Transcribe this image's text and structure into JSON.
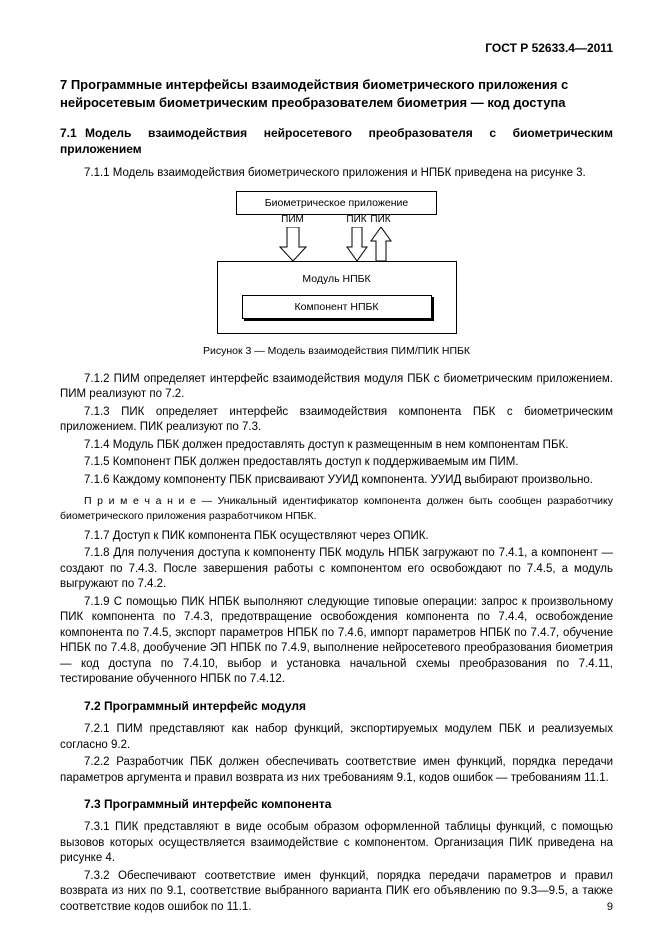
{
  "doc_id": "ГОСТ Р 52633.4—2011",
  "section7_title": "7  Программные интерфейсы взаимодействия биометрического приложения с нейросетевым биометрическим преобразователем биометрия — код доступа",
  "s71_title": "7.1 Модель взаимодействия нейросетевого преобразователя с биометрическим приложением",
  "p711": "7.1.1  Модель взаимодействия биометрического приложения и НПБК приведена на рисунке 3.",
  "fig": {
    "top_box": "Биометрическое приложение",
    "label_pim": "ПИМ",
    "label_pik": "ПИК",
    "big_box_title": "Модуль НПБК",
    "inner_box": "Компонент НПБК",
    "caption": "Рисунок 3 — Модель взаимодействия ПИМ/ПИК НПБК"
  },
  "p712": "7.1.2  ПИМ определяет интерфейс взаимодействия модуля ПБК с биометрическим приложением. ПИМ реализуют по 7.2.",
  "p713": "7.1.3  ПИК определяет интерфейс взаимодействия компонента ПБК с биометрическим приложением. ПИК реализуют по 7.3.",
  "p714": "7.1.4  Модуль ПБК должен предоставлять доступ к размещенным в нем компонентам ПБК.",
  "p715": "7.1.5  Компонент ПБК должен предоставлять доступ к поддерживаемым им ПИМ.",
  "p716": "7.1.6  Каждому компоненту ПБК присваивают УУИД компонента. УУИД выбирают произвольно.",
  "note1": "П р и м е ч а н и е  — Уникальный идентификатор компонента должен быть сообщен разработчику биометрического приложения разработчиком НПБК.",
  "p717": "7.1.7  Доступ к ПИК компонента ПБК осуществляют через ОПИК.",
  "p718": "7.1.8  Для получения доступа к компоненту ПБК модуль НПБК загружают по 7.4.1, а компонент — создают по 7.4.3. После завершения работы с компонентом его освобождают по 7.4.5, а модуль выгружают по 7.4.2.",
  "p719": "7.1.9  С помощью ПИК НПБК выполняют следующие типовые операции: запрос к произвольному ПИК компонента по 7.4.3, предотвращение освобождения компонента по 7.4.4, освобождение компонента по 7.4.5, экспорт параметров НПБК по 7.4.6, импорт параметров НПБК по 7.4.7, обучение НПБК по 7.4.8, дообучение ЭП НПБК по 7.4.9, выполнение нейросетевого преобразования биометрия — код доступа по 7.4.10, выбор и установка начальной схемы преобразования по 7.4.11, тестирование обученного НПБК по 7.4.12.",
  "s72_title": "7.2  Программный интерфейс модуля",
  "p721": "7.2.1  ПИМ представляют как набор функций, экспортируемых модулем ПБК и реализуемых согласно 9.2.",
  "p722": "7.2.2  Разработчик ПБК должен обеспечивать соответствие имен функций, порядка передачи параметров аргумента и правил возврата из них требованиям 9.1, кодов ошибок — требованиям 11.1.",
  "s73_title": "7.3  Программный интерфейс компонента",
  "p731": "7.3.1  ПИК представляют в виде особым образом оформленной таблицы функций, с помощью вызовов которых осуществляется взаимодействие с компонентом. Организация ПИК приведена на рисунке 4.",
  "p732": "7.3.2  Обеспечивают соответствие имен функций, порядка передачи параметров и правил возврата из них по 9.1, соответствие выбранного варианта ПИК его объявлению по 9.3—9.5, а также соответствие кодов ошибок по 11.1.",
  "page_num": "9"
}
